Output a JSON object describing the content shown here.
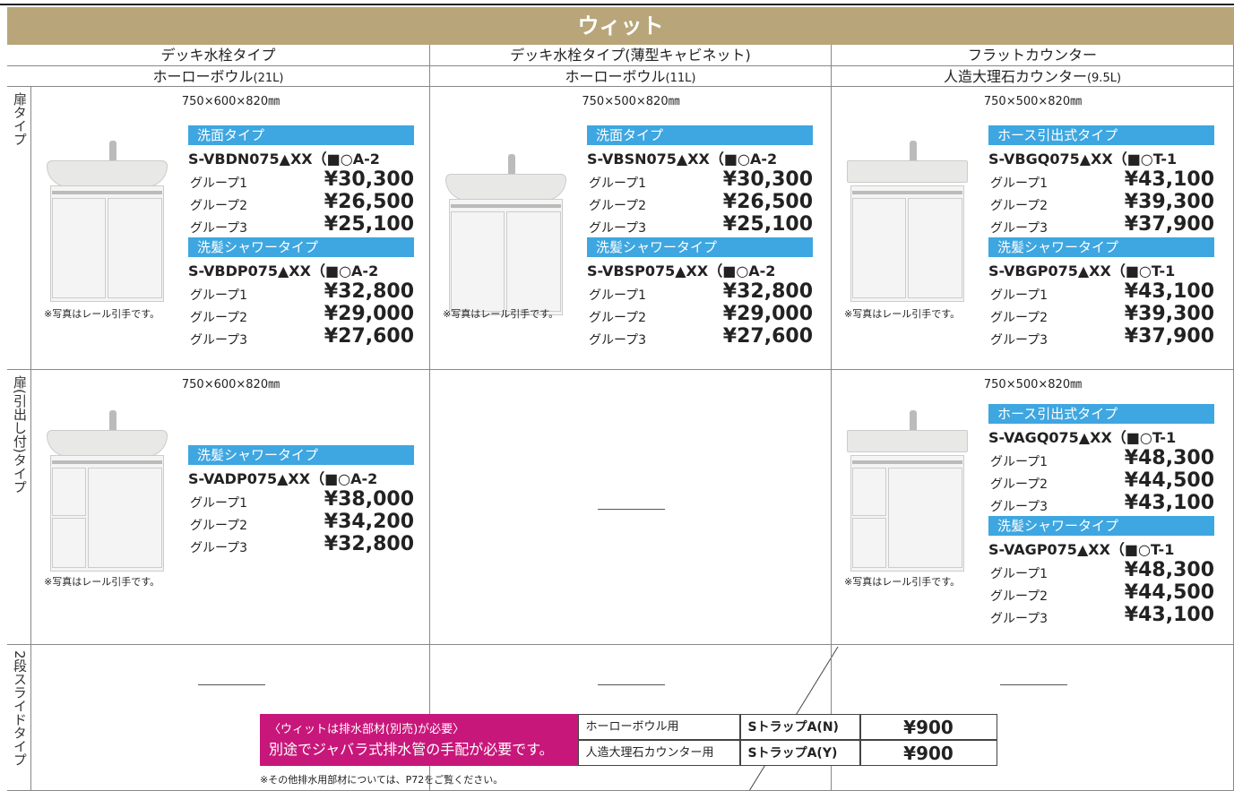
{
  "header": {
    "title": "ウィット"
  },
  "columns": [
    {
      "type": "デッキ水栓タイプ",
      "bowl": "ホーローボウル",
      "capacity": "(21L)"
    },
    {
      "type": "デッキ水栓タイプ(薄型キャビネット)",
      "bowl": "ホーローボウル",
      "capacity": "(11L)"
    },
    {
      "type": "フラットカウンター",
      "bowl": "人造大理石カウンター",
      "capacity": "(9.5L)"
    }
  ],
  "rows": [
    {
      "label": "扉タイプ",
      "cells": [
        {
          "size": "750×600×820㎜",
          "note": "※写真はレール引手です。",
          "sections": [
            {
              "name": "洗面タイプ",
              "model": "S-VBDN075▲XX（■○A-2",
              "prices": [
                {
                  "group": "グループ1",
                  "price": "¥30,300"
                },
                {
                  "group": "グループ2",
                  "price": "¥26,500"
                },
                {
                  "group": "グループ3",
                  "price": "¥25,100"
                }
              ]
            },
            {
              "name": "洗髪シャワータイプ",
              "model": "S-VBDP075▲XX（■○A-2",
              "prices": [
                {
                  "group": "グループ1",
                  "price": "¥32,800"
                },
                {
                  "group": "グループ2",
                  "price": "¥29,000"
                },
                {
                  "group": "グループ3",
                  "price": "¥27,600"
                }
              ]
            }
          ]
        },
        {
          "size": "750×500×820㎜",
          "note": "※写真はレール引手です。",
          "sections": [
            {
              "name": "洗面タイプ",
              "model": "S-VBSN075▲XX（■○A-2",
              "prices": [
                {
                  "group": "グループ1",
                  "price": "¥30,300"
                },
                {
                  "group": "グループ2",
                  "price": "¥26,500"
                },
                {
                  "group": "グループ3",
                  "price": "¥25,100"
                }
              ]
            },
            {
              "name": "洗髪シャワータイプ",
              "model": "S-VBSP075▲XX（■○A-2",
              "prices": [
                {
                  "group": "グループ1",
                  "price": "¥32,800"
                },
                {
                  "group": "グループ2",
                  "price": "¥29,000"
                },
                {
                  "group": "グループ3",
                  "price": "¥27,600"
                }
              ]
            }
          ]
        },
        {
          "size": "750×500×820㎜",
          "note": "※写真はレール引手です。",
          "sections": [
            {
              "name": "ホース引出式タイプ",
              "model": "S-VBGQ075▲XX（■○T-1",
              "prices": [
                {
                  "group": "グループ1",
                  "price": "¥43,100"
                },
                {
                  "group": "グループ2",
                  "price": "¥39,300"
                },
                {
                  "group": "グループ3",
                  "price": "¥37,900"
                }
              ]
            },
            {
              "name": "洗髪シャワータイプ",
              "model": "S-VBGP075▲XX（■○T-1",
              "prices": [
                {
                  "group": "グループ1",
                  "price": "¥43,100"
                },
                {
                  "group": "グループ2",
                  "price": "¥39,300"
                },
                {
                  "group": "グループ3",
                  "price": "¥37,900"
                }
              ]
            }
          ]
        }
      ]
    },
    {
      "label": "扉(引出し付)タイプ",
      "cells": [
        {
          "size": "750×600×820㎜",
          "note": "※写真はレール引手です。",
          "sections": [
            {
              "name": "洗髪シャワータイプ",
              "model": "S-VADP075▲XX（■○A-2",
              "prices": [
                {
                  "group": "グループ1",
                  "price": "¥38,000"
                },
                {
                  "group": "グループ2",
                  "price": "¥34,200"
                },
                {
                  "group": "グループ3",
                  "price": "¥32,800"
                }
              ]
            }
          ]
        },
        null,
        {
          "size": "750×500×820㎜",
          "note": "※写真はレール引手です。",
          "sections": [
            {
              "name": "ホース引出式タイプ",
              "model": "S-VAGQ075▲XX（■○T-1",
              "prices": [
                {
                  "group": "グループ1",
                  "price": "¥48,300"
                },
                {
                  "group": "グループ2",
                  "price": "¥44,500"
                },
                {
                  "group": "グループ3",
                  "price": "¥43,100"
                }
              ]
            },
            {
              "name": "洗髪シャワータイプ",
              "model": "S-VAGP075▲XX（■○T-1",
              "prices": [
                {
                  "group": "グループ1",
                  "price": "¥48,300"
                },
                {
                  "group": "グループ2",
                  "price": "¥44,500"
                },
                {
                  "group": "グループ3",
                  "price": "¥43,100"
                }
              ]
            }
          ]
        }
      ]
    },
    {
      "label": "2段スライドタイプ",
      "cells": [
        null,
        null,
        null
      ]
    }
  ],
  "drain": {
    "notice": [
      "〈ウィットは排水部材(別売)が必要〉",
      "別途でジャバラ式排水管の手配が必要です。"
    ],
    "rows": [
      [
        "ホーローボウル用",
        "SトラップA(N)",
        "¥900"
      ],
      [
        "人造大理石カウンター用",
        "SトラップA(Y)",
        "¥900"
      ]
    ],
    "note": "※その他排水用部材については、P72をご覧ください。"
  }
}
